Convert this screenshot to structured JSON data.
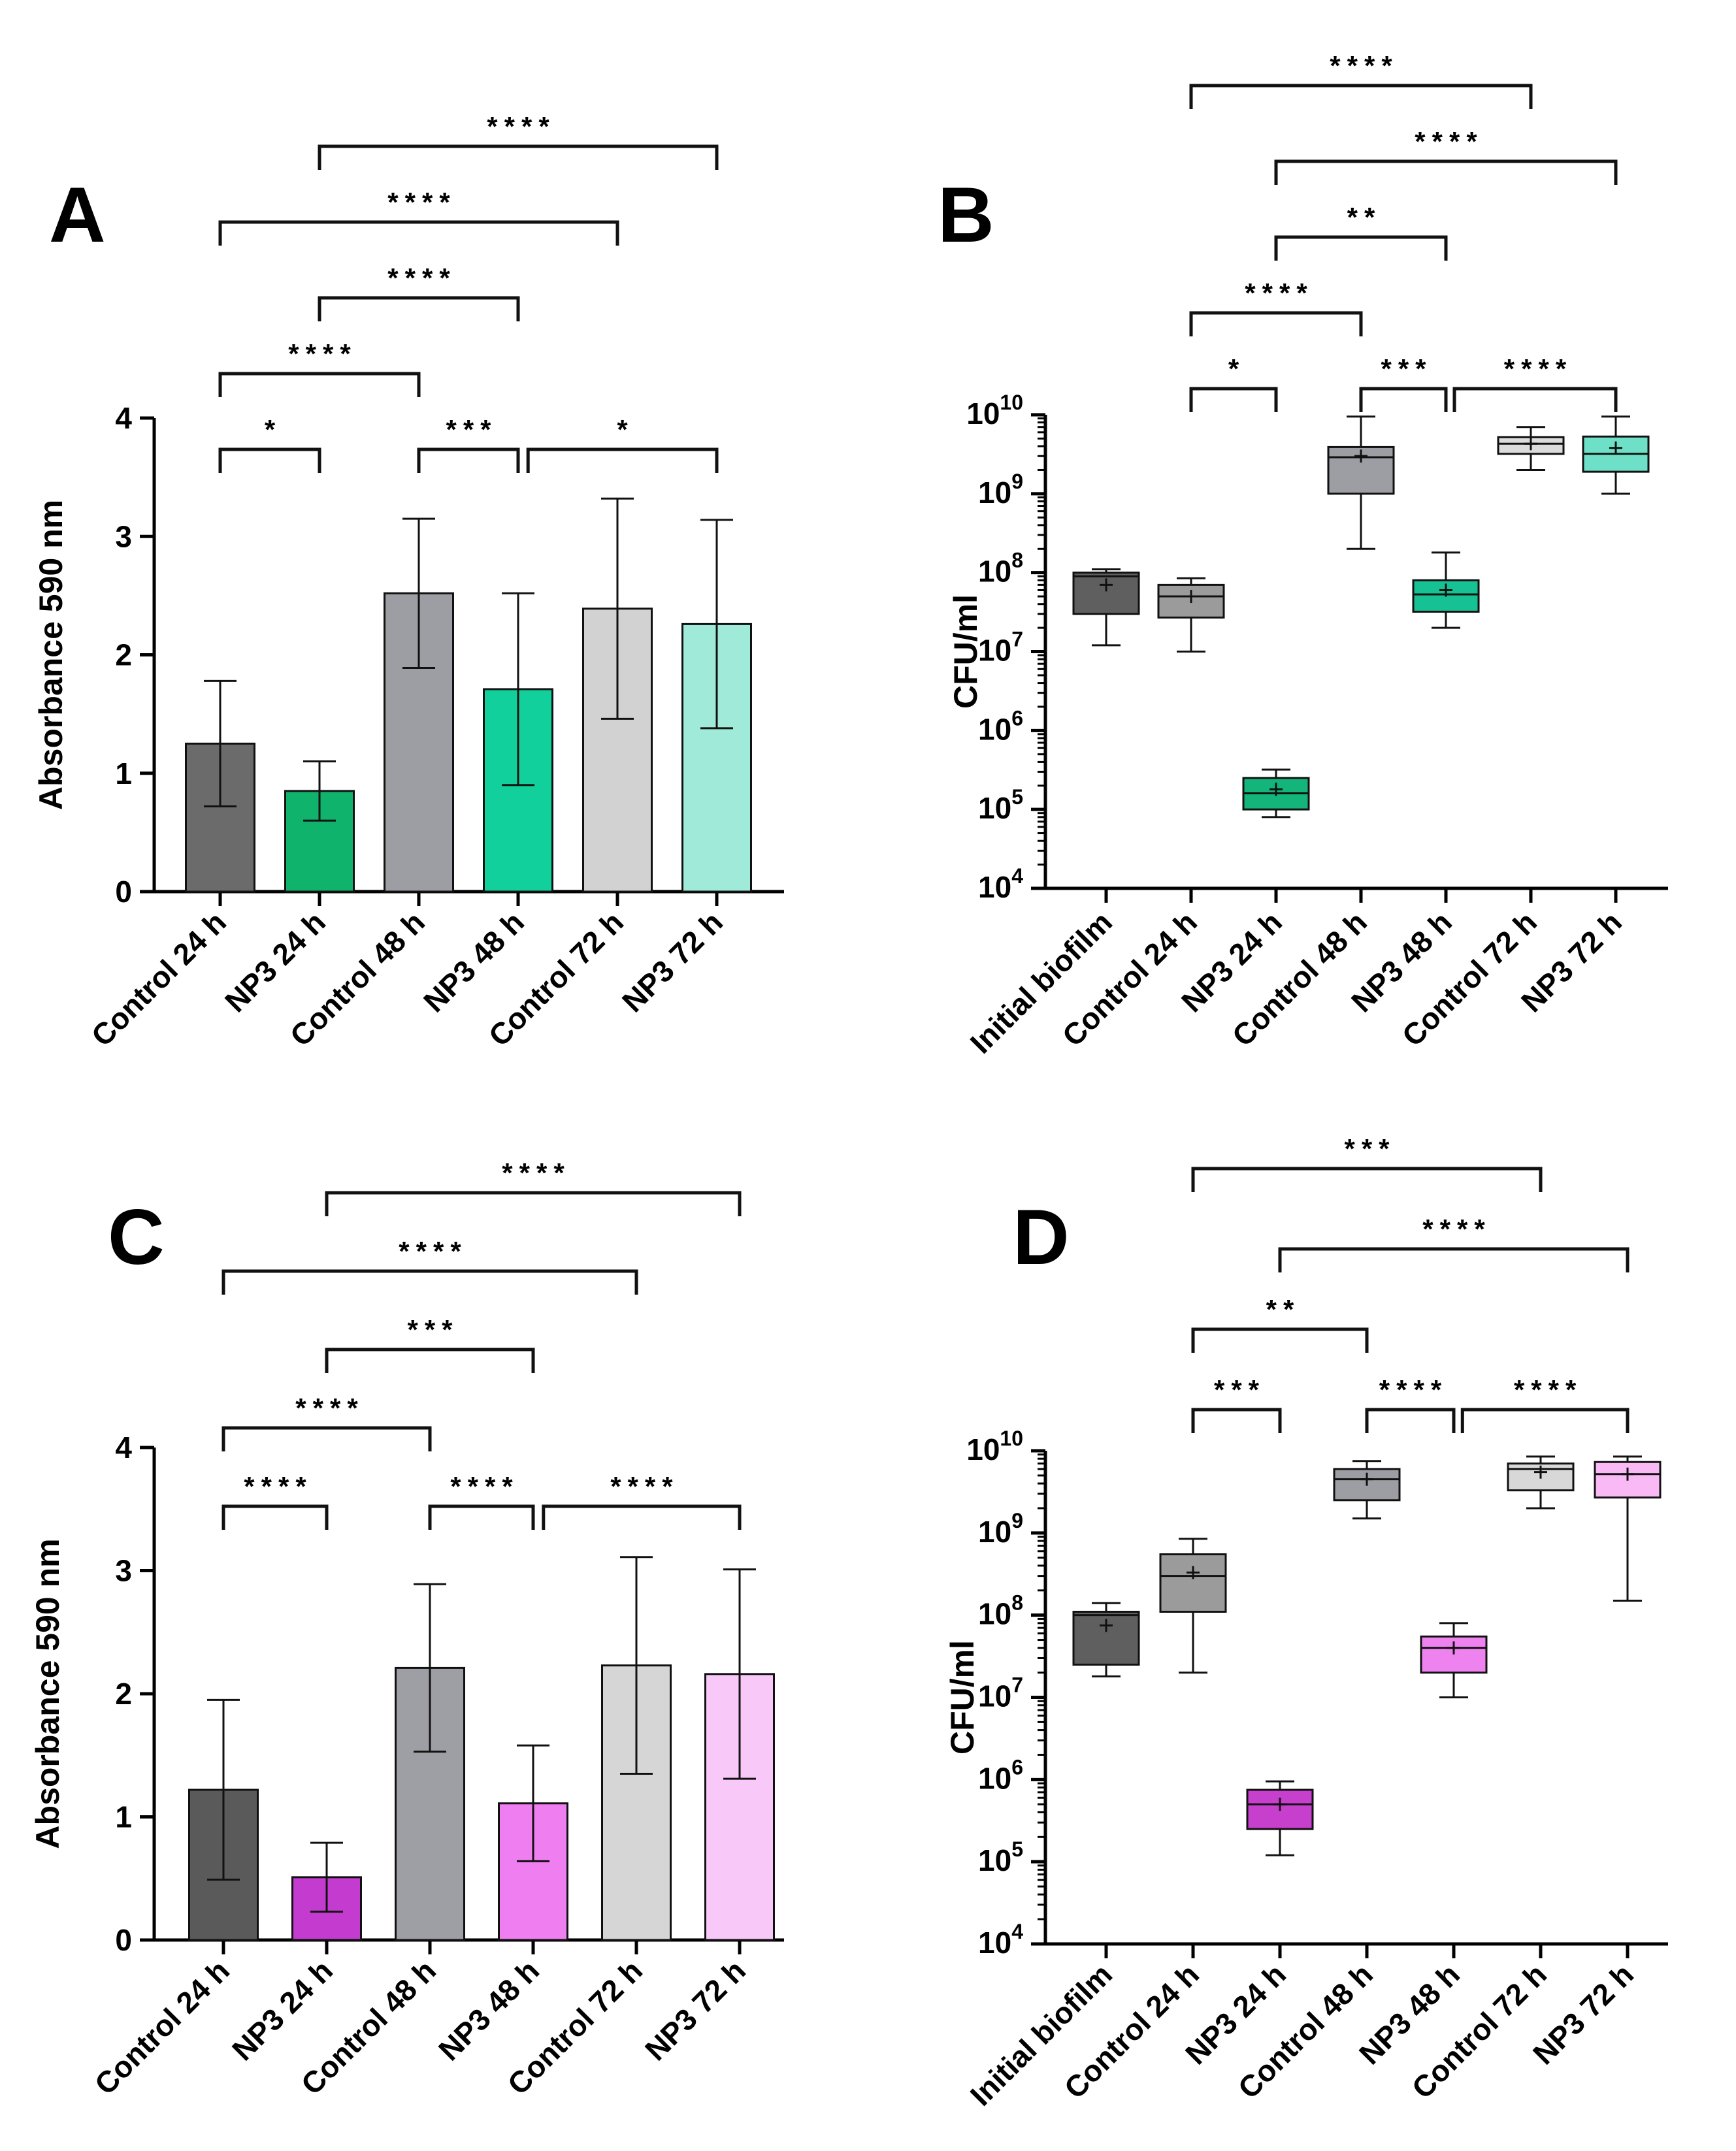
{
  "chart_data": [
    {
      "panel": "A",
      "type": "bar",
      "ylabel": "Absorbance 590 nm",
      "ylim": [
        0,
        4
      ],
      "yticks": [
        "0",
        "1",
        "2",
        "3",
        "4"
      ],
      "categories": [
        "Control 24 h",
        "NP3 24 h",
        "Control 48 h",
        "NP3 48 h",
        "Control 72 h",
        "NP3 72 h"
      ],
      "values": [
        1.25,
        0.85,
        2.52,
        1.71,
        2.39,
        2.26
      ],
      "errors": [
        0.53,
        0.25,
        0.63,
        0.81,
        0.93,
        0.88
      ],
      "colors": [
        "#6b6b6b",
        "#10b36c",
        "#9d9da4",
        "#12d09c",
        "#d2d2d2",
        "#9fead8"
      ],
      "significance": [
        {
          "from": 0,
          "to": 1,
          "label": "*",
          "level": 0
        },
        {
          "from": 2,
          "to": 3,
          "label": "***",
          "level": 0
        },
        {
          "from": 3.1,
          "to": 5,
          "label": "*",
          "level": 0
        },
        {
          "from": 0,
          "to": 2,
          "label": "****",
          "level": 1
        },
        {
          "from": 1,
          "to": 3,
          "label": "****",
          "level": 2
        },
        {
          "from": 0,
          "to": 4,
          "label": "****",
          "level": 3
        },
        {
          "from": 1,
          "to": 5,
          "label": "****",
          "level": 4
        }
      ]
    },
    {
      "panel": "B",
      "type": "box",
      "ylabel": "CFU/ml",
      "ylim": [
        4,
        10
      ],
      "yscale": "log10",
      "yticks": [
        4,
        5,
        6,
        7,
        8,
        9,
        10
      ],
      "categories": [
        "Initial biofilm",
        "Control 24 h",
        "NP3 24 h",
        "Control 48 h",
        "NP3 48 h",
        "Control 72 h",
        "NP3 72 h"
      ],
      "colors": [
        "#5f5f5f",
        "#9b9b9b",
        "#14b57b",
        "#9d9da4",
        "#16c294",
        "#dcdcdc",
        "#6fe0c8"
      ],
      "boxes": [
        {
          "min": 12000000.0,
          "q1": 30000000.0,
          "median": 90000000.0,
          "q3": 100000000.0,
          "max": 110000000.0,
          "mean": 70000000.0
        },
        {
          "min": 10000000.0,
          "q1": 27000000.0,
          "median": 50000000.0,
          "q3": 70000000.0,
          "max": 85000000.0,
          "mean": 50000000.0
        },
        {
          "min": 80000.0,
          "q1": 100000.0,
          "median": 160000.0,
          "q3": 250000.0,
          "max": 320000.0,
          "mean": 180000.0
        },
        {
          "min": 200000000.0,
          "q1": 1000000000.0,
          "median": 2900000000.0,
          "q3": 3900000000.0,
          "max": 9500000000.0,
          "mean": 3000000000.0
        },
        {
          "min": 20000000.0,
          "q1": 32000000.0,
          "median": 53000000.0,
          "q3": 80000000.0,
          "max": 180000000.0,
          "mean": 60000000.0
        },
        {
          "min": 2000000000.0,
          "q1": 3200000000.0,
          "median": 4300000000.0,
          "q3": 5200000000.0,
          "max": 7000000000.0,
          "mean": 4300000000.0
        },
        {
          "min": 1000000000.0,
          "q1": 1900000000.0,
          "median": 3200000000.0,
          "q3": 5300000000.0,
          "max": 9500000000.0,
          "mean": 3800000000.0
        }
      ],
      "significance": [
        {
          "from": 1,
          "to": 2,
          "label": "*",
          "level": 0
        },
        {
          "from": 3,
          "to": 4,
          "label": "***",
          "level": 0
        },
        {
          "from": 4.1,
          "to": 6,
          "label": "****",
          "level": 0
        },
        {
          "from": 1,
          "to": 3,
          "label": "****",
          "level": 1
        },
        {
          "from": 2,
          "to": 4,
          "label": "**",
          "level": 2
        },
        {
          "from": 2,
          "to": 6,
          "label": "****",
          "level": 3
        },
        {
          "from": 1,
          "to": 5,
          "label": "****",
          "level": 4
        }
      ]
    },
    {
      "panel": "C",
      "type": "bar",
      "ylabel": "Absorbance 590 nm",
      "ylim": [
        0,
        4
      ],
      "yticks": [
        "0",
        "1",
        "2",
        "3",
        "4"
      ],
      "categories": [
        "Control 24 h",
        "NP3 24 h",
        "Control 48 h",
        "NP3 48 h",
        "Control 72 h",
        "NP3 72 h"
      ],
      "values": [
        1.22,
        0.51,
        2.21,
        1.11,
        2.23,
        2.16
      ],
      "errors": [
        0.73,
        0.28,
        0.68,
        0.47,
        0.88,
        0.85
      ],
      "colors": [
        "#5a5a5a",
        "#c43ccf",
        "#9e9ea5",
        "#ef7ef0",
        "#d6d6d6",
        "#f8c8f8"
      ],
      "significance": [
        {
          "from": 0,
          "to": 1,
          "label": "****",
          "level": 0
        },
        {
          "from": 2,
          "to": 3,
          "label": "****",
          "level": 0
        },
        {
          "from": 3.1,
          "to": 5,
          "label": "****",
          "level": 0
        },
        {
          "from": 0,
          "to": 2,
          "label": "****",
          "level": 1
        },
        {
          "from": 1,
          "to": 3,
          "label": "***",
          "level": 2
        },
        {
          "from": 0,
          "to": 4,
          "label": "****",
          "level": 3
        },
        {
          "from": 1,
          "to": 5,
          "label": "****",
          "level": 4
        }
      ]
    },
    {
      "panel": "D",
      "type": "box",
      "ylabel": "CFU/ml",
      "ylim": [
        4,
        10
      ],
      "yscale": "log10",
      "yticks": [
        4,
        5,
        6,
        7,
        8,
        9,
        10
      ],
      "categories": [
        "Initial biofilm",
        "Control 24 h",
        "NP3 24 h",
        "Control 48 h",
        "NP3 48 h",
        "Control 72 h",
        "NP3 72 h"
      ],
      "colors": [
        "#5f5f5f",
        "#9b9b9b",
        "#c63fcd",
        "#9d9da4",
        "#ee82ee",
        "#d8d8d8",
        "#f9b9f5"
      ],
      "boxes": [
        {
          "min": 18000000.0,
          "q1": 25000000.0,
          "median": 100000000.0,
          "q3": 110000000.0,
          "max": 140000000.0,
          "mean": 75000000.0
        },
        {
          "min": 20000000.0,
          "q1": 110000000.0,
          "median": 300000000.0,
          "q3": 550000000.0,
          "max": 850000000.0,
          "mean": 330000000.0
        },
        {
          "min": 120000.0,
          "q1": 250000.0,
          "median": 500000.0,
          "q3": 750000.0,
          "max": 950000.0,
          "mean": 500000.0
        },
        {
          "min": 1500000000.0,
          "q1": 2500000000.0,
          "median": 4500000000.0,
          "q3": 6000000000.0,
          "max": 7500000000.0,
          "mean": 4500000000.0
        },
        {
          "min": 10000000.0,
          "q1": 20000000.0,
          "median": 40000000.0,
          "q3": 55000000.0,
          "max": 80000000.0,
          "mean": 40000000.0
        },
        {
          "min": 2000000000.0,
          "q1": 3300000000.0,
          "median": 6000000000.0,
          "q3": 7000000000.0,
          "max": 8500000000.0,
          "mean": 5500000000.0
        },
        {
          "min": 150000000.0,
          "q1": 2700000000.0,
          "median": 5200000000.0,
          "q3": 7300000000.0,
          "max": 8500000000.0,
          "mean": 5200000000.0
        }
      ],
      "significance": [
        {
          "from": 1,
          "to": 2,
          "label": "***",
          "level": 0
        },
        {
          "from": 3,
          "to": 4,
          "label": "****",
          "level": 0
        },
        {
          "from": 4.1,
          "to": 6,
          "label": "****",
          "level": 0
        },
        {
          "from": 1,
          "to": 3,
          "label": "**",
          "level": 1
        },
        {
          "from": 2,
          "to": 6,
          "label": "****",
          "level": 2
        },
        {
          "from": 1,
          "to": 5,
          "label": "***",
          "level": 3
        }
      ]
    }
  ]
}
